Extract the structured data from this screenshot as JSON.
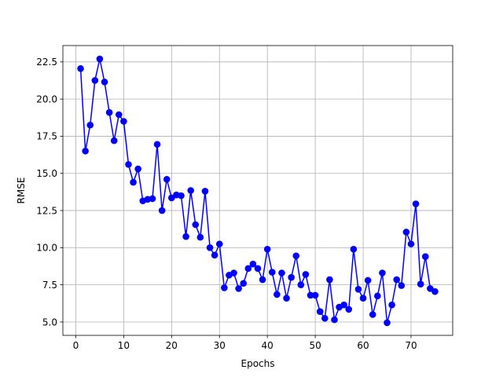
{
  "chart_data": {
    "type": "line",
    "title": "",
    "xlabel": "Epochs",
    "ylabel": "RMSE",
    "xlim": [
      -2.7,
      78.7
    ],
    "ylim": [
      4.1,
      23.6
    ],
    "xticks": [
      0,
      10,
      20,
      30,
      40,
      50,
      60,
      70
    ],
    "yticks": [
      5.0,
      7.5,
      10.0,
      12.5,
      15.0,
      17.5,
      20.0,
      22.5
    ],
    "xtick_labels": [
      "0",
      "10",
      "20",
      "30",
      "40",
      "50",
      "60",
      "70"
    ],
    "ytick_labels": [
      "5.0",
      "7.5",
      "10.0",
      "12.5",
      "15.0",
      "17.5",
      "20.0",
      "22.5"
    ],
    "grid": true,
    "legend": "none",
    "series": [
      {
        "color": "#0000ff",
        "marker": "circle",
        "x": [
          1,
          2,
          3,
          4,
          5,
          6,
          7,
          8,
          9,
          10,
          11,
          12,
          13,
          14,
          15,
          16,
          17,
          18,
          19,
          20,
          21,
          22,
          23,
          24,
          25,
          26,
          27,
          28,
          29,
          30,
          31,
          32,
          33,
          34,
          35,
          36,
          37,
          38,
          39,
          40,
          41,
          42,
          43,
          44,
          45,
          46,
          47,
          48,
          49,
          50,
          51,
          52,
          53,
          54,
          55,
          56,
          57,
          58,
          59,
          60,
          61,
          62,
          63,
          64,
          65,
          66,
          67,
          68,
          69,
          70,
          71,
          72,
          73,
          74,
          75
        ],
        "y": [
          22.05,
          16.5,
          18.25,
          21.25,
          22.7,
          21.15,
          19.1,
          17.2,
          18.95,
          18.5,
          15.6,
          14.4,
          15.3,
          13.15,
          13.25,
          13.3,
          16.95,
          12.5,
          14.6,
          13.35,
          13.55,
          13.5,
          10.75,
          13.85,
          11.55,
          10.7,
          13.8,
          10.0,
          9.5,
          10.25,
          7.3,
          8.15,
          8.3,
          7.25,
          7.6,
          8.6,
          8.9,
          8.6,
          7.85,
          9.9,
          8.35,
          6.85,
          8.3,
          6.6,
          8.0,
          9.45,
          7.5,
          8.2,
          6.8,
          6.8,
          5.7,
          5.25,
          7.85,
          5.15,
          6.0,
          6.15,
          5.85,
          9.9,
          7.2,
          6.6,
          7.8,
          5.5,
          6.75,
          8.3,
          4.95,
          6.15,
          7.85,
          7.45,
          11.05,
          10.25,
          12.95,
          7.55,
          9.4,
          7.25,
          7.05
        ]
      }
    ]
  }
}
